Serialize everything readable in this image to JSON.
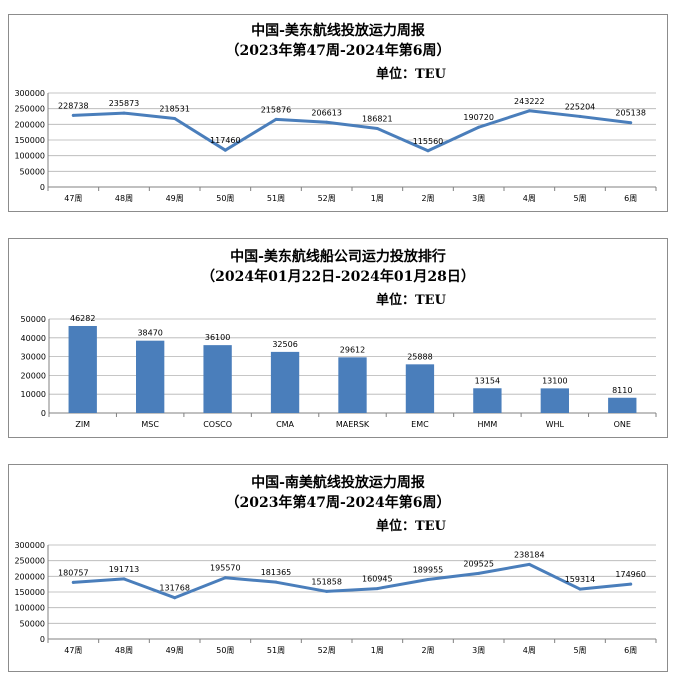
{
  "chart_data": [
    {
      "type": "line",
      "title": "中国-美东航线投放运力周报",
      "subtitle": "（2023年第47周-2024年第6周）",
      "unit": "单位：TEU",
      "categories": [
        "47周",
        "48周",
        "49周",
        "50周",
        "51周",
        "52周",
        "1周",
        "2周",
        "3周",
        "4周",
        "5周",
        "6周"
      ],
      "series": [
        {
          "values": [
            228738,
            235873,
            218531,
            117460,
            215876,
            206613,
            186821,
            115560,
            190720,
            243222,
            225204,
            205138
          ]
        }
      ],
      "ylim": [
        0,
        300000
      ],
      "yticks": [
        0,
        50000,
        100000,
        150000,
        200000,
        250000,
        300000
      ],
      "grid": true,
      "color": "#4a7ebb"
    },
    {
      "type": "bar",
      "title": "中国-美东航线船公司运力投放排行",
      "subtitle": "（2024年01月22日-2024年01月28日）",
      "unit": "单位：TEU",
      "categories": [
        "ZIM",
        "MSC",
        "COSCO",
        "CMA",
        "MAERSK",
        "EMC",
        "HMM",
        "WHL",
        "ONE"
      ],
      "series": [
        {
          "values": [
            46282,
            38470,
            36100,
            32506,
            29612,
            25888,
            13154,
            13100,
            8110
          ]
        }
      ],
      "ylim": [
        0,
        50000
      ],
      "yticks": [
        0,
        10000,
        20000,
        30000,
        40000,
        50000
      ],
      "grid": true,
      "color": "#4a7ebb"
    },
    {
      "type": "line",
      "title": "中国-南美航线投放运力周报",
      "subtitle": "（2023年第47周-2024年第6周）",
      "unit": "单位：TEU",
      "categories": [
        "47周",
        "48周",
        "49周",
        "50周",
        "51周",
        "52周",
        "1周",
        "2周",
        "3周",
        "4周",
        "5周",
        "6周"
      ],
      "series": [
        {
          "values": [
            180757,
            191713,
            131768,
            195570,
            181365,
            151858,
            160945,
            189955,
            209525,
            238184,
            159314,
            174960
          ]
        }
      ],
      "ylim": [
        0,
        300000
      ],
      "yticks": [
        0,
        50000,
        100000,
        150000,
        200000,
        250000,
        300000
      ],
      "grid": true,
      "color": "#4a7ebb"
    }
  ]
}
